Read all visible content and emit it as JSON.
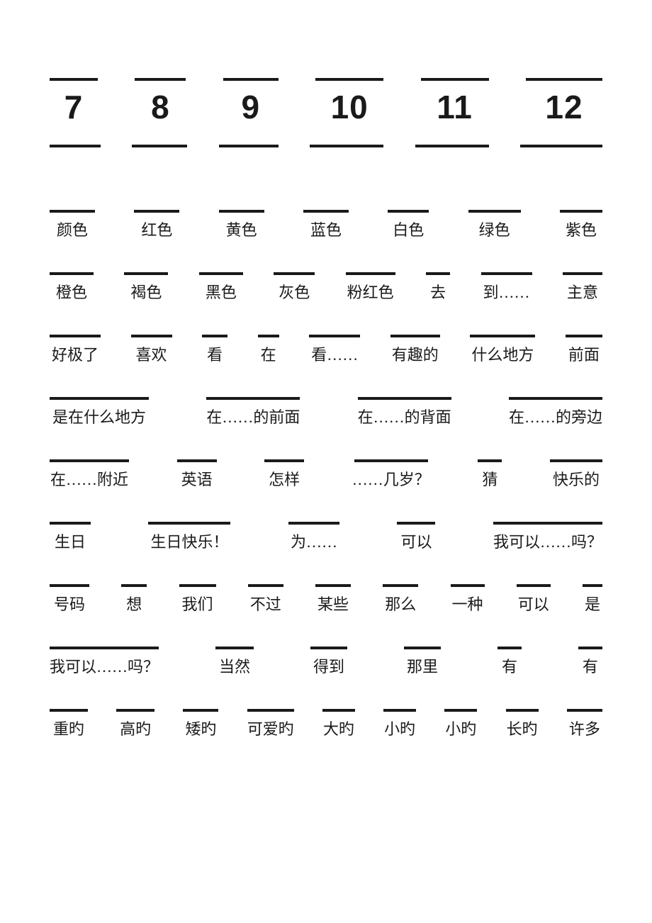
{
  "page": {
    "background_color": "#ffffff",
    "text_color": "#1a1a1a",
    "line_color": "#1a1a1a"
  },
  "row_numbers": {
    "items": [
      "7",
      "8",
      "9",
      "10",
      "11",
      "12"
    ],
    "blank_widths": [
      68,
      72,
      78,
      96,
      96,
      108
    ],
    "fontsize": 46
  },
  "row_blanks_after_numbers": {
    "blank_widths": [
      72,
      78,
      84,
      104,
      104,
      116
    ]
  },
  "rows": [
    {
      "items": [
        "颜色",
        "红色",
        "黄色",
        "蓝色",
        "白色",
        "绿色",
        "紫色"
      ],
      "blank_widths": [
        64,
        64,
        64,
        64,
        58,
        74,
        60
      ]
    },
    {
      "items": [
        "橙色",
        "褐色",
        "黑色",
        "灰色",
        "粉红色",
        "去",
        "到……",
        "主意"
      ],
      "blank_widths": [
        62,
        62,
        62,
        58,
        70,
        34,
        72,
        56
      ]
    },
    {
      "items": [
        "好极了",
        "喜欢",
        "看",
        "在",
        "看……",
        "有趣的",
        "什么地方",
        "前面"
      ],
      "blank_widths": [
        72,
        58,
        36,
        30,
        72,
        70,
        92,
        52
      ]
    },
    {
      "items": [
        "是在什么地方",
        "在……的前面",
        "在……的背面",
        "在……的旁边"
      ],
      "blank_widths": [
        140,
        132,
        132,
        132
      ]
    },
    {
      "items": [
        "在……附近",
        "英语",
        "怎样",
        "……几岁？",
        "猜",
        "快乐的"
      ],
      "blank_widths": [
        112,
        56,
        56,
        104,
        34,
        74
      ]
    },
    {
      "items": [
        "生日",
        "生日快乐！",
        "为……",
        "可以",
        "我可以……吗？"
      ],
      "blank_widths": [
        58,
        116,
        72,
        54,
        154
      ]
    },
    {
      "items": [
        "号码",
        "想",
        "我们",
        "不过",
        "某些",
        "那么",
        "一种",
        "可以",
        "是"
      ],
      "blank_widths": [
        56,
        36,
        52,
        50,
        50,
        50,
        48,
        48,
        28
      ]
    },
    {
      "items": [
        "我可以……吗？",
        "当然",
        "得到",
        "那里",
        "有",
        "有"
      ],
      "blank_widths": [
        154,
        54,
        52,
        52,
        34,
        34
      ]
    },
    {
      "items": [
        "重旳",
        "高旳",
        "矮旳",
        "可爱旳",
        "大旳",
        "小旳",
        "小旳",
        "长旳",
        "许多"
      ],
      "blank_widths": [
        54,
        54,
        50,
        66,
        46,
        46,
        46,
        46,
        50
      ]
    }
  ]
}
